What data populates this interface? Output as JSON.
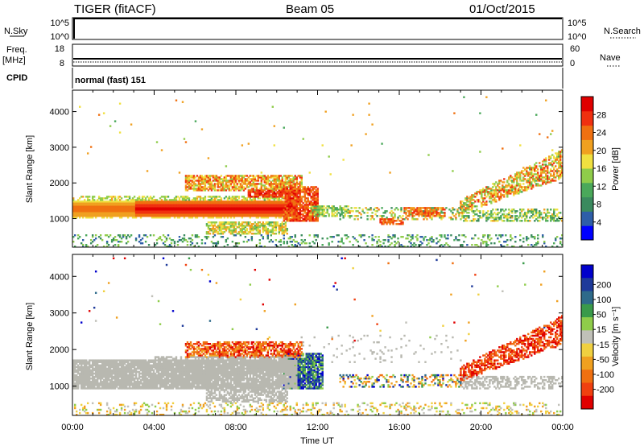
{
  "header": {
    "station": "TIGER (fitACF)",
    "beam": "Beam 05",
    "date": "01/Oct/2015"
  },
  "top_panels": {
    "nsky_label": "N.Sky",
    "nsearch_label": "N.Search",
    "nsky_ticks": [
      "10^5",
      "10^0"
    ],
    "nsearch_ticks": [
      "10^5",
      "10^0"
    ],
    "freq_label_line1": "Freq.",
    "freq_label_line2": "[MHz]",
    "freq_ticks": [
      "18",
      "8"
    ],
    "nave_label": "Nave",
    "nave_ticks": [
      "60",
      "0"
    ],
    "cpid_label": "CPID",
    "cpid_text": "normal (fast) 151"
  },
  "colors": {
    "power": [
      "#0000ff",
      "#2e5ea8",
      "#3a8a5e",
      "#4aa85a",
      "#8fcc4a",
      "#f0e040",
      "#f0a020",
      "#f07010",
      "#f03010",
      "#e00000"
    ],
    "velocity": [
      "#0000cc",
      "#1e3a9a",
      "#2e6a8a",
      "#3a9a4a",
      "#8fcc4a",
      "#c0c0b8",
      "#f0d040",
      "#f0a020",
      "#f07010",
      "#f04010",
      "#e00000"
    ],
    "ground_scatter": "#b8b8b0"
  },
  "chart_data": [
    {
      "type": "heatmap",
      "name": "power",
      "xlabel": "",
      "ylabel": "Slant Range [km]",
      "x_ticks": [
        "00:00",
        "04:00",
        "08:00",
        "12:00",
        "16:00",
        "20:00",
        "00:00"
      ],
      "y_ticks": [
        "1000",
        "2000",
        "3000",
        "4000"
      ],
      "ylim": [
        200,
        4600
      ],
      "xlim_hours": [
        0,
        24
      ],
      "colorbar_label": "Power [dB]",
      "colorbar_ticks": [
        "28",
        "24",
        "20",
        "16",
        "12",
        "8",
        "4"
      ],
      "colorbar_range": [
        0,
        32
      ]
    },
    {
      "type": "heatmap",
      "name": "velocity",
      "xlabel": "Time UT",
      "ylabel": "Slant Range [km]",
      "x_ticks": [
        "00:00",
        "04:00",
        "08:00",
        "12:00",
        "16:00",
        "20:00",
        "00:00"
      ],
      "y_ticks": [
        "1000",
        "2000",
        "3000",
        "4000"
      ],
      "ylim": [
        200,
        4600
      ],
      "xlim_hours": [
        0,
        24
      ],
      "colorbar_label": "Velocity [m s⁻¹]",
      "colorbar_ticks": [
        "200",
        "100",
        "50",
        "15",
        "-15",
        "-50",
        "-100",
        "-200"
      ]
    }
  ]
}
